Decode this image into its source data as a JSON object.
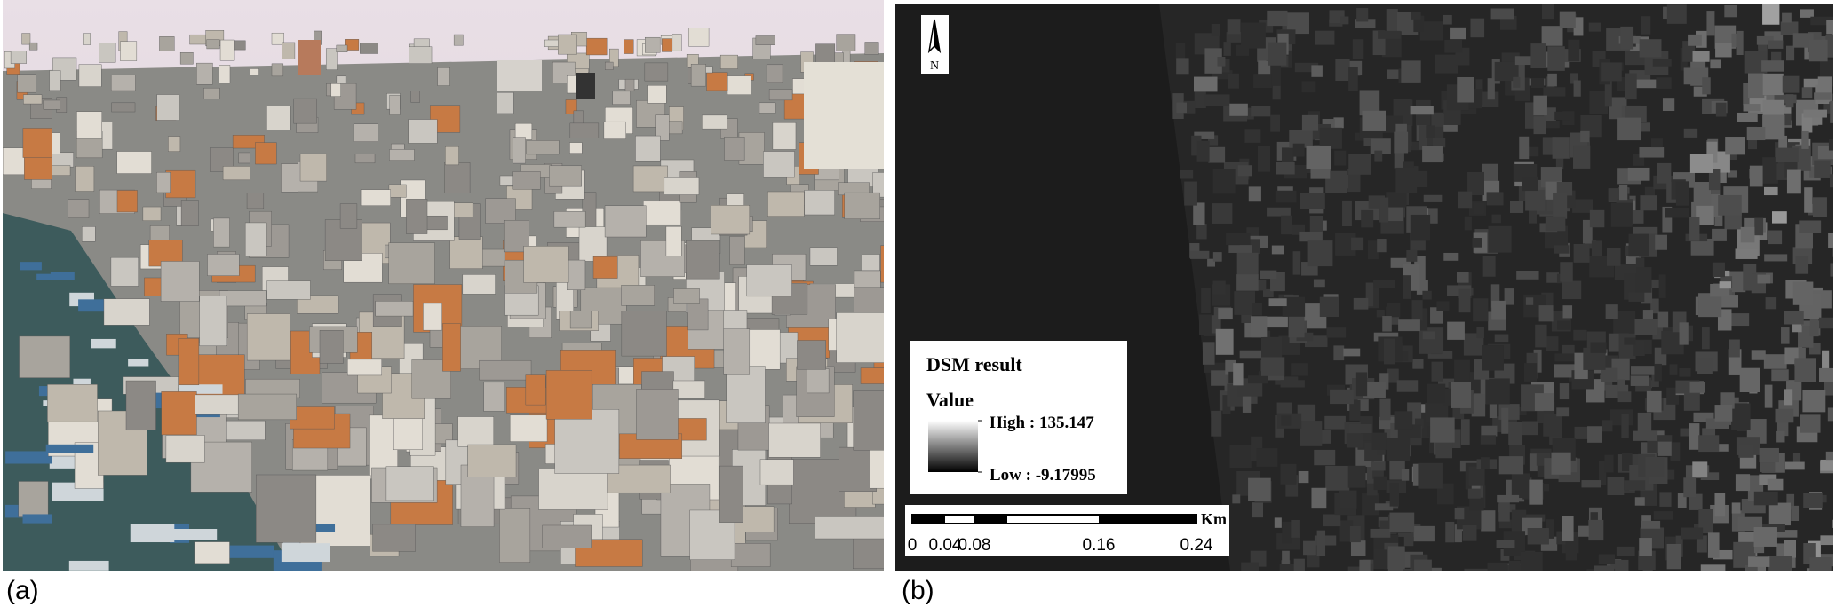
{
  "panels": [
    {
      "label": "(a)"
    },
    {
      "label": "(b)",
      "legend": {
        "title": "DSM result",
        "subtitle": "Value",
        "high": "High : 135.147",
        "low": "Low : -9.17995"
      },
      "scale_bar": {
        "unit": "Km",
        "ticks": [
          "0",
          "0.04",
          "0.08",
          "0.16",
          "0.24"
        ]
      },
      "north": "N"
    }
  ]
}
